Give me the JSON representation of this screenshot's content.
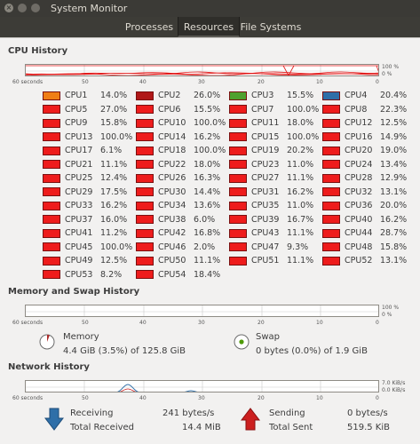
{
  "window": {
    "title": "System Monitor"
  },
  "tabs": [
    {
      "label": "Processes",
      "active": false
    },
    {
      "label": "Resources",
      "active": true
    },
    {
      "label": "File Systems",
      "active": false
    }
  ],
  "cpu_history": {
    "title": "CPU History",
    "x_labels": [
      "60 seconds",
      "50",
      "40",
      "30",
      "20",
      "10",
      "0"
    ],
    "y_labels": [
      "100 %",
      "0 %"
    ],
    "cpus": [
      [
        "CPU1",
        "14.0%",
        "#f07e16"
      ],
      [
        "CPU2",
        "26.0%",
        "#b01818"
      ],
      [
        "CPU3",
        "15.5%",
        "#4fa12e"
      ],
      [
        "CPU4",
        "20.4%",
        "#2f6fa8"
      ],
      [
        "CPU5",
        "27.0%",
        "#ee1c1c"
      ],
      [
        "CPU6",
        "15.5%",
        "#ee1c1c"
      ],
      [
        "CPU7",
        "100.0%",
        "#ee1c1c"
      ],
      [
        "CPU8",
        "22.3%",
        "#ee1c1c"
      ],
      [
        "CPU9",
        "15.8%",
        "#ee1c1c"
      ],
      [
        "CPU10",
        "100.0%",
        "#ee1c1c"
      ],
      [
        "CPU11",
        "18.0%",
        "#ee1c1c"
      ],
      [
        "CPU12",
        "12.5%",
        "#ee1c1c"
      ],
      [
        "CPU13",
        "100.0%",
        "#ee1c1c"
      ],
      [
        "CPU14",
        "16.2%",
        "#ee1c1c"
      ],
      [
        "CPU15",
        "100.0%",
        "#ee1c1c"
      ],
      [
        "CPU16",
        "14.9%",
        "#ee1c1c"
      ],
      [
        "CPU17",
        "6.1%",
        "#ee1c1c"
      ],
      [
        "CPU18",
        "100.0%",
        "#ee1c1c"
      ],
      [
        "CPU19",
        "20.2%",
        "#ee1c1c"
      ],
      [
        "CPU20",
        "19.0%",
        "#ee1c1c"
      ],
      [
        "CPU21",
        "11.1%",
        "#ee1c1c"
      ],
      [
        "CPU22",
        "18.0%",
        "#ee1c1c"
      ],
      [
        "CPU23",
        "11.0%",
        "#ee1c1c"
      ],
      [
        "CPU24",
        "13.4%",
        "#ee1c1c"
      ],
      [
        "CPU25",
        "12.4%",
        "#ee1c1c"
      ],
      [
        "CPU26",
        "16.3%",
        "#ee1c1c"
      ],
      [
        "CPU27",
        "11.1%",
        "#ee1c1c"
      ],
      [
        "CPU28",
        "12.9%",
        "#ee1c1c"
      ],
      [
        "CPU29",
        "17.5%",
        "#ee1c1c"
      ],
      [
        "CPU30",
        "14.4%",
        "#ee1c1c"
      ],
      [
        "CPU31",
        "16.2%",
        "#ee1c1c"
      ],
      [
        "CPU32",
        "13.1%",
        "#ee1c1c"
      ],
      [
        "CPU33",
        "16.2%",
        "#ee1c1c"
      ],
      [
        "CPU34",
        "13.6%",
        "#ee1c1c"
      ],
      [
        "CPU35",
        "11.0%",
        "#ee1c1c"
      ],
      [
        "CPU36",
        "20.0%",
        "#ee1c1c"
      ],
      [
        "CPU37",
        "16.0%",
        "#ee1c1c"
      ],
      [
        "CPU38",
        "6.0%",
        "#ee1c1c"
      ],
      [
        "CPU39",
        "16.7%",
        "#ee1c1c"
      ],
      [
        "CPU40",
        "16.2%",
        "#ee1c1c"
      ],
      [
        "CPU41",
        "11.2%",
        "#ee1c1c"
      ],
      [
        "CPU42",
        "16.8%",
        "#ee1c1c"
      ],
      [
        "CPU43",
        "11.1%",
        "#ee1c1c"
      ],
      [
        "CPU44",
        "28.7%",
        "#ee1c1c"
      ],
      [
        "CPU45",
        "100.0%",
        "#ee1c1c"
      ],
      [
        "CPU46",
        "2.0%",
        "#ee1c1c"
      ],
      [
        "CPU47",
        "9.3%",
        "#ee1c1c"
      ],
      [
        "CPU48",
        "15.8%",
        "#ee1c1c"
      ],
      [
        "CPU49",
        "12.5%",
        "#ee1c1c"
      ],
      [
        "CPU50",
        "11.1%",
        "#ee1c1c"
      ],
      [
        "CPU51",
        "11.1%",
        "#ee1c1c"
      ],
      [
        "CPU52",
        "13.1%",
        "#ee1c1c"
      ],
      [
        "CPU53",
        "8.2%",
        "#ee1c1c"
      ],
      [
        "CPU54",
        "18.4%",
        "#ee1c1c"
      ]
    ]
  },
  "memory_history": {
    "title": "Memory and Swap History",
    "x_labels": [
      "60 seconds",
      "50",
      "40",
      "30",
      "20",
      "10",
      "0"
    ],
    "y_labels": [
      "100 %",
      "0 %"
    ],
    "memory": {
      "label": "Memory",
      "value": "4.4 GiB (3.5%) of 125.8 GiB",
      "color": "#ad2a2a",
      "fraction": 0.035
    },
    "swap": {
      "label": "Swap",
      "value": "0 bytes (0.0%) of 1.9 GiB",
      "color": "#4e9a06",
      "fraction": 0.0
    }
  },
  "network_history": {
    "title": "Network History",
    "x_labels": [
      "60 seconds",
      "50",
      "40",
      "30",
      "20",
      "10",
      "0"
    ],
    "y_labels": [
      "7.0 KiB/s",
      "0.0 KiB/s"
    ],
    "receiving": {
      "label": "Receiving",
      "rate": "241 bytes/s",
      "total_label": "Total Received",
      "total": "14.4 MiB",
      "color": "#2f6fa8"
    },
    "sending": {
      "label": "Sending",
      "rate": "0 bytes/s",
      "total_label": "Total Sent",
      "total": "519.5 KiB",
      "color": "#cc1f1f"
    }
  }
}
